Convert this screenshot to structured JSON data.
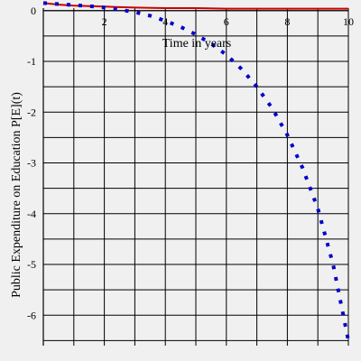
{
  "chart_data": {
    "type": "line",
    "xlabel": "Time in years",
    "ylabel": "Public Expenditure on Education P[E](t)",
    "xlim": [
      0,
      10
    ],
    "ylim": [
      -6.6,
      0.05
    ],
    "x_ticks": [
      2,
      4,
      6,
      8,
      10
    ],
    "y_ticks": [
      0,
      -1,
      -2,
      -3,
      -4,
      -5,
      -6
    ],
    "x_tick_labels": [
      "2",
      "4",
      "6",
      "8",
      "10"
    ],
    "y_tick_labels": [
      "0",
      "-1",
      "-2",
      "-3",
      "-4",
      "-5",
      "-6"
    ],
    "grid": true,
    "colors": {
      "background": "#f0f0f0",
      "grid": "#000000",
      "series1": "#cc0000",
      "series2": "#0000cc"
    },
    "series": [
      {
        "style": "solid",
        "color": "#cc0000",
        "x": [
          0,
          0.5,
          1,
          1.5,
          2,
          2.5,
          3,
          4,
          5,
          6,
          7,
          8,
          9,
          10
        ],
        "y": [
          0.15,
          0.12,
          0.1,
          0.09,
          0.08,
          0.07,
          0.06,
          0.05,
          0.05,
          0.04,
          0.04,
          0.04,
          0.04,
          0.04
        ]
      },
      {
        "style": "dotted",
        "color": "#0000cc",
        "x": [
          0,
          0.5,
          1,
          1.5,
          2,
          2.5,
          3,
          3.5,
          4,
          4.5,
          5,
          5.5,
          6,
          6.5,
          7,
          7.5,
          8,
          8.5,
          9,
          9.5,
          10
        ],
        "y": [
          0.15,
          0.13,
          0.11,
          0.09,
          0.06,
          0.02,
          -0.03,
          -0.1,
          -0.2,
          -0.32,
          -0.47,
          -0.65,
          -0.87,
          -1.15,
          -1.5,
          -1.92,
          -2.45,
          -3.1,
          -3.9,
          -5.0,
          -6.5
        ]
      }
    ]
  }
}
